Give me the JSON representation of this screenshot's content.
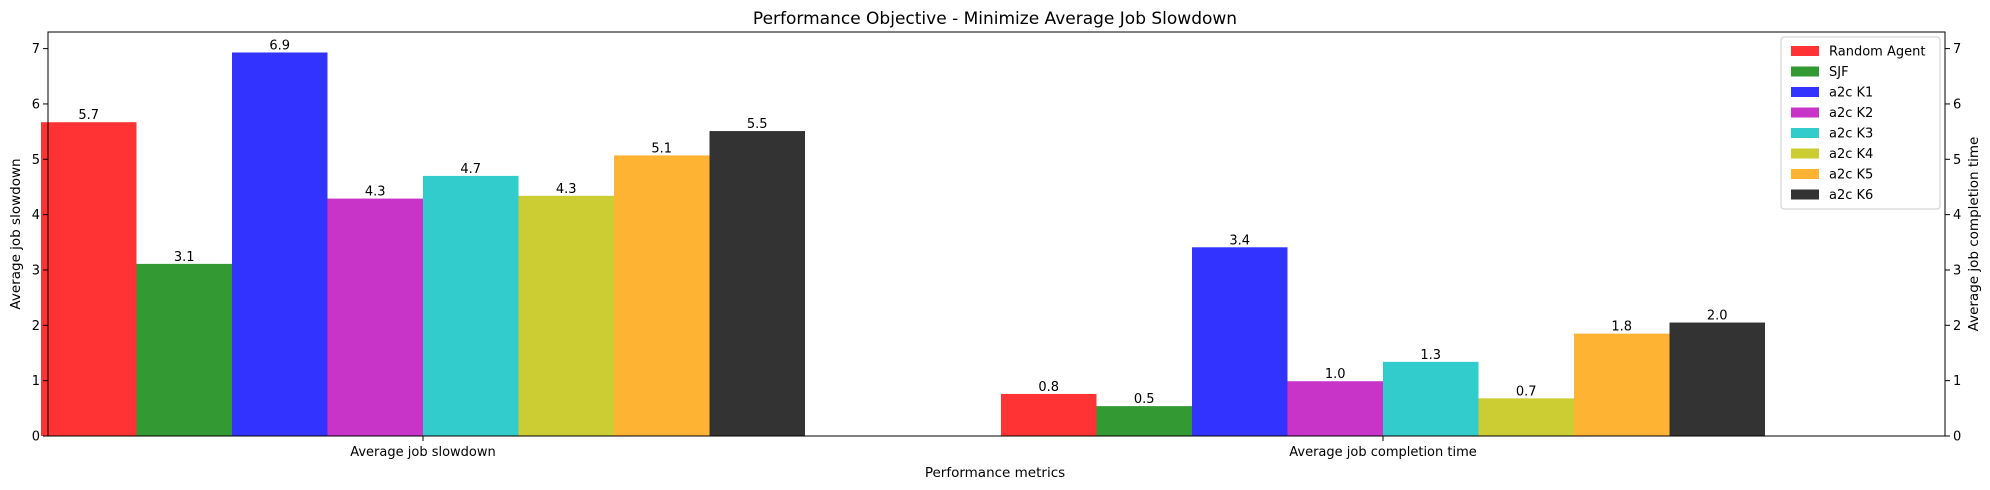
{
  "chart_data": {
    "type": "bar",
    "title": "Performance Objective - Minimize Average Job Slowdown",
    "xlabel": "Performance metrics",
    "ylabel": "Average job slowdown",
    "ylabel_right": "Average job completion time",
    "ylim": [
      0,
      7.3
    ],
    "yticks": [
      "0",
      "1",
      "2",
      "3",
      "4",
      "5",
      "6",
      "7"
    ],
    "yticks_right": [
      "0",
      "1",
      "2",
      "3",
      "4",
      "5",
      "6",
      "7"
    ],
    "categories": [
      "Average job slowdown",
      "Average job completion time"
    ],
    "legend_position": "top-right",
    "series": [
      {
        "name": "Random Agent",
        "color": "#ff3333",
        "values": [
          5.67,
          0.76
        ],
        "labels": [
          "5.7",
          "0.8"
        ]
      },
      {
        "name": "SJF",
        "color": "#339933",
        "values": [
          3.11,
          0.54
        ],
        "labels": [
          "3.1",
          "0.5"
        ]
      },
      {
        "name": "a2c K1",
        "color": "#3333ff",
        "values": [
          6.93,
          3.41
        ],
        "labels": [
          "6.9",
          "3.4"
        ]
      },
      {
        "name": "a2c K2",
        "color": "#c833c8",
        "values": [
          4.29,
          0.99
        ],
        "labels": [
          "4.3",
          "1.0"
        ]
      },
      {
        "name": "a2c K3",
        "color": "#33cccc",
        "values": [
          4.7,
          1.34
        ],
        "labels": [
          "4.7",
          "1.3"
        ]
      },
      {
        "name": "a2c K4",
        "color": "#cccc33",
        "values": [
          4.34,
          0.68
        ],
        "labels": [
          "4.3",
          "0.7"
        ]
      },
      {
        "name": "a2c K5",
        "color": "#ffb333",
        "values": [
          5.07,
          1.85
        ],
        "labels": [
          "5.1",
          "1.8"
        ]
      },
      {
        "name": "a2c K6",
        "color": "#333333",
        "values": [
          5.51,
          2.05
        ],
        "labels": [
          "5.5",
          "2.0"
        ]
      }
    ]
  }
}
